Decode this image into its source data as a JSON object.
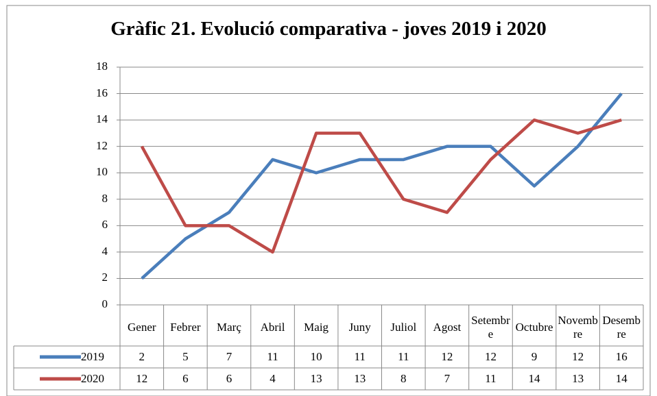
{
  "chart_data": {
    "type": "line",
    "title": "Gràfic 21. Evolució comparativa - joves 2019 i 2020",
    "categories": [
      "Gener",
      "Febrer",
      "Març",
      "Abril",
      "Maig",
      "Juny",
      "Juliol",
      "Agost",
      "Setembre",
      "Octubre",
      "Novembre",
      "Desembre"
    ],
    "series": [
      {
        "name": "2019",
        "color": "#4a7ebb",
        "values": [
          2,
          5,
          7,
          11,
          10,
          11,
          11,
          12,
          12,
          9,
          12,
          16
        ]
      },
      {
        "name": "2020",
        "color": "#be4b48",
        "values": [
          12,
          6,
          6,
          4,
          13,
          13,
          8,
          7,
          11,
          14,
          13,
          14
        ]
      }
    ],
    "ylim": [
      0,
      18
    ],
    "yticks": [
      0,
      2,
      4,
      6,
      8,
      10,
      12,
      14,
      16,
      18
    ],
    "grid": true
  }
}
